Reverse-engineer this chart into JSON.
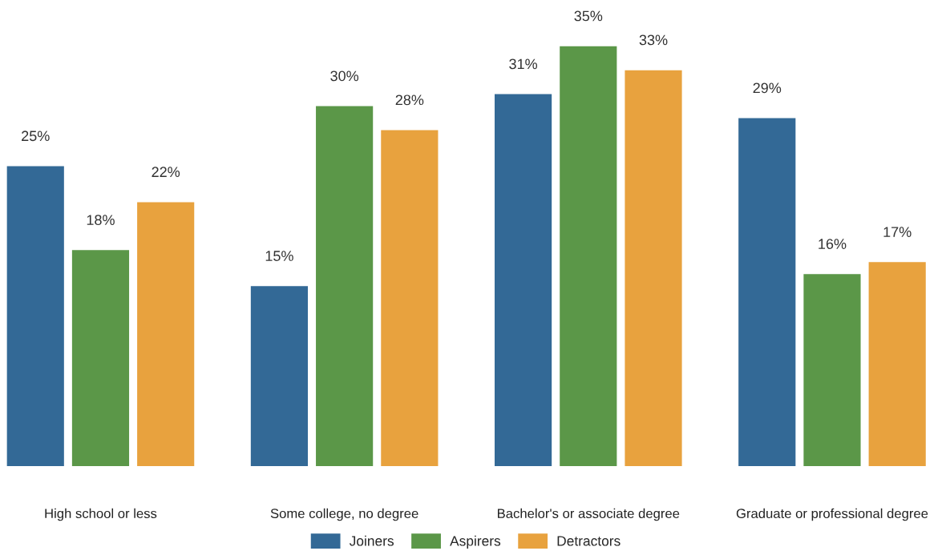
{
  "chart_data": {
    "type": "bar",
    "categories": [
      "High school or less",
      "Some college, no degree",
      "Bachelor's or associate degree",
      "Graduate or professional degree"
    ],
    "series": [
      {
        "name": "Joiners",
        "color": "#336996",
        "values": [
          25,
          15,
          31,
          29
        ],
        "value_labels": [
          "25%",
          "15%",
          "31%",
          "29%"
        ]
      },
      {
        "name": "Aspirers",
        "color": "#5b9748",
        "values": [
          18,
          30,
          35,
          16
        ],
        "value_labels": [
          "18%",
          "30%",
          "35%",
          "16%"
        ]
      },
      {
        "name": "Detractors",
        "color": "#e8a23e",
        "values": [
          22,
          28,
          33,
          17
        ],
        "value_labels": [
          "22%",
          "28%",
          "33%",
          "17%"
        ]
      }
    ],
    "tick_labels": "x",
    "grid": false,
    "legend": "bottom"
  }
}
